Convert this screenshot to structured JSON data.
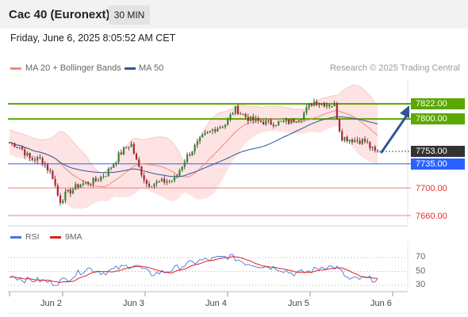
{
  "header": {
    "title": "Cac 40 (Euronext)",
    "timeframe": "30 MIN"
  },
  "datetime": "Friday, June 6, 2025 8:05:52 AM CET",
  "legend": {
    "ma20_label": "MA 20 + Bollinger Bands",
    "ma20_color": "#f28b82",
    "ma50_label": "MA 50",
    "ma50_color": "#2f5597",
    "credit": "Research © 2025 Trading Central"
  },
  "levels": [
    {
      "label": "7822.00",
      "value": 7822,
      "style": "resistance"
    },
    {
      "label": "7800.00",
      "value": 7800,
      "style": "resistance"
    },
    {
      "label": "7753.00",
      "value": 7753,
      "style": "current"
    },
    {
      "label": "7735.00",
      "value": 7735,
      "style": "pivot"
    },
    {
      "label": "7700.00",
      "value": 7700,
      "style": "support"
    },
    {
      "label": "7660.00",
      "value": 7660,
      "style": "support"
    }
  ],
  "rsi_legend": {
    "rsi_label": "RSI",
    "rsi_color": "#4a78d6",
    "ma_label": "9MA",
    "ma_color": "#e02020",
    "levels": [
      "70",
      "50",
      "30"
    ]
  },
  "x_axis": [
    "Jun 2",
    "Jun 3",
    "Jun 4",
    "Jun 5",
    "Jun 6"
  ],
  "chart_data": {
    "type": "line",
    "title": "Cac 40 (Euronext)",
    "xlabel": "",
    "ylabel": "",
    "ylim": [
      7650,
      7835
    ],
    "x": [
      "Jun 2",
      "Jun 3",
      "Jun 4",
      "Jun 5",
      "Jun 6"
    ],
    "price_approx": [
      7710,
      7705,
      7815,
      7795,
      7753
    ],
    "rsi_ylim": [
      20,
      80
    ],
    "rsi_levels": [
      70,
      50,
      30
    ]
  }
}
